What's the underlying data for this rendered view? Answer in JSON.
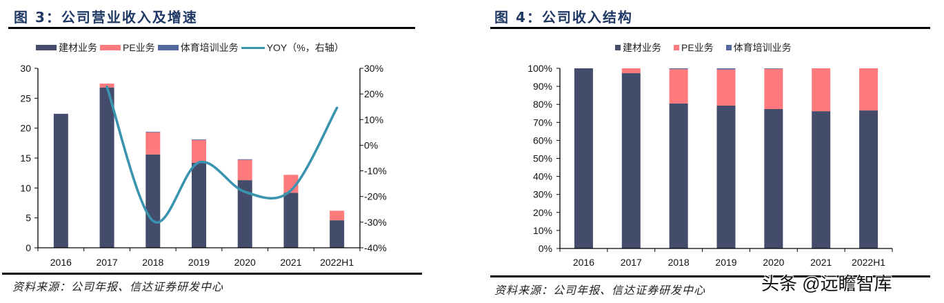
{
  "figures": [
    {
      "title": "图 3：公司营业收入及增速",
      "legend": [
        "建材业务",
        "PE业务",
        "体育培训业务",
        "YOY（%，右轴）"
      ],
      "source": "资料来源：公司年报、信达证券研发中心"
    },
    {
      "title": "图 4：公司收入结构",
      "legend": [
        "建材业务",
        "PE业务",
        "体育培训业务"
      ],
      "source": "资料来源：公司年报、信达证券研发中心"
    }
  ],
  "watermark": "头条 @远瞻智库",
  "colors": {
    "building_materials": "#434d6b",
    "pe": "#ff7a7c",
    "sports_training": "#5468a0",
    "yoy_line": "#3a94b0",
    "title": "#1f3864"
  },
  "chart_data": [
    {
      "type": "bar",
      "subtype": "stacked bar + line (secondary axis)",
      "title": "图 3：公司营业收入及增速",
      "categories": [
        "2016",
        "2017",
        "2018",
        "2019",
        "2020",
        "2021",
        "2022H1"
      ],
      "series": [
        {
          "name": "建材业务",
          "type": "bar",
          "axis": "left",
          "values": [
            22.4,
            26.8,
            15.6,
            14.2,
            11.3,
            9.2,
            4.6
          ]
        },
        {
          "name": "PE业务",
          "type": "bar",
          "axis": "left",
          "values": [
            0,
            0.65,
            3.7,
            3.8,
            3.4,
            3.0,
            1.6
          ]
        },
        {
          "name": "体育培训业务",
          "type": "bar",
          "axis": "left",
          "values": [
            0,
            0,
            0.1,
            0.1,
            0.1,
            0,
            0
          ]
        },
        {
          "name": "YOY（%，右轴）",
          "type": "line",
          "axis": "right",
          "values": [
            null,
            22.8,
            -29.5,
            -6.7,
            -18.2,
            -17.6,
            14.6
          ]
        }
      ],
      "xlabel": "",
      "ylabel": "",
      "ylim": [
        0,
        30
      ],
      "yticks": [
        0,
        5,
        10,
        15,
        20,
        25,
        30
      ],
      "y2lim": [
        -40,
        30
      ],
      "y2ticks": [
        "-40%",
        "-30%",
        "-20%",
        "-10%",
        "0%",
        "10%",
        "20%",
        "30%"
      ],
      "legend_position": "top",
      "grid": false
    },
    {
      "type": "bar",
      "subtype": "100% stacked bar",
      "title": "图 4：公司收入结构",
      "categories": [
        "2016",
        "2017",
        "2018",
        "2019",
        "2020",
        "2021",
        "2022H1"
      ],
      "series": [
        {
          "name": "建材业务",
          "values": [
            100,
            97.3,
            80.5,
            79.3,
            77.4,
            76.2,
            76.6
          ]
        },
        {
          "name": "PE业务",
          "values": [
            0,
            2.7,
            19.0,
            20.1,
            22.3,
            23.8,
            23.4
          ]
        },
        {
          "name": "体育培训业务",
          "values": [
            0,
            0,
            0.5,
            0.6,
            0.3,
            0,
            0
          ]
        }
      ],
      "xlabel": "",
      "ylabel": "",
      "ylim": [
        0,
        100
      ],
      "yticks": [
        "0%",
        "10%",
        "20%",
        "30%",
        "40%",
        "50%",
        "60%",
        "70%",
        "80%",
        "90%",
        "100%"
      ],
      "legend_position": "top",
      "grid": false
    }
  ]
}
